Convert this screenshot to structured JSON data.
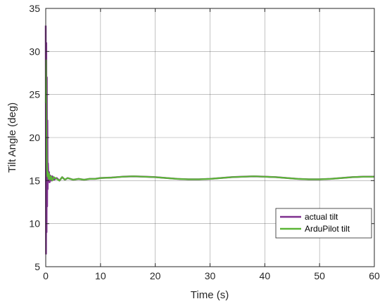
{
  "chart_data": {
    "type": "line",
    "xlabel": "Time (s)",
    "ylabel": "Tilt Angle (deg)",
    "xlim": [
      0,
      60
    ],
    "ylim": [
      5,
      35
    ],
    "x_ticks": [
      0,
      10,
      20,
      30,
      40,
      50,
      60
    ],
    "y_ticks": [
      5,
      10,
      15,
      20,
      25,
      30,
      35
    ],
    "grid": true,
    "legend_position": "bottom-right",
    "series": [
      {
        "name": "actual tilt",
        "color": "#7E2F8E",
        "x": [
          0,
          0.05,
          0.1,
          0.15,
          0.2,
          0.25,
          0.3,
          0.35,
          0.4,
          0.5,
          0.6,
          0.7,
          0.8,
          1.0,
          1.2,
          1.5,
          2,
          2.5,
          3,
          3.5,
          4,
          5,
          6,
          7,
          8,
          9,
          10,
          12,
          14,
          16,
          18,
          20,
          22,
          24,
          26,
          28,
          30,
          32,
          34,
          36,
          38,
          40,
          42,
          44,
          46,
          48,
          50,
          52,
          54,
          56,
          58,
          60
        ],
        "y": [
          33,
          6.5,
          31,
          9,
          27,
          12,
          22,
          14,
          17,
          15,
          16,
          14.8,
          15.6,
          15,
          15.5,
          15.1,
          15.3,
          15.0,
          15.4,
          15.1,
          15.3,
          15.1,
          15.2,
          15.1,
          15.2,
          15.2,
          15.3,
          15.35,
          15.45,
          15.5,
          15.45,
          15.4,
          15.3,
          15.2,
          15.15,
          15.15,
          15.2,
          15.3,
          15.4,
          15.45,
          15.5,
          15.45,
          15.4,
          15.3,
          15.2,
          15.15,
          15.15,
          15.2,
          15.3,
          15.4,
          15.45,
          15.45
        ]
      },
      {
        "name": "ArduPilot tilt",
        "color": "#5BB536",
        "x": [
          0,
          0.05,
          0.1,
          0.15,
          0.2,
          0.3,
          0.4,
          0.5,
          0.6,
          0.8,
          1.0,
          1.2,
          1.5,
          2,
          2.5,
          3,
          3.5,
          4,
          5,
          6,
          7,
          8,
          9,
          10,
          12,
          14,
          16,
          18,
          20,
          22,
          24,
          26,
          28,
          30,
          32,
          34,
          36,
          38,
          40,
          42,
          44,
          46,
          48,
          50,
          52,
          54,
          56,
          58,
          60
        ],
        "y": [
          24,
          29,
          22,
          19,
          17,
          15.5,
          16,
          15.2,
          15.8,
          15.1,
          15.5,
          15.0,
          15.4,
          15.2,
          15.0,
          15.4,
          15.1,
          15.3,
          15.1,
          15.2,
          15.1,
          15.2,
          15.2,
          15.3,
          15.35,
          15.45,
          15.5,
          15.45,
          15.4,
          15.3,
          15.2,
          15.15,
          15.15,
          15.2,
          15.3,
          15.4,
          15.45,
          15.5,
          15.45,
          15.4,
          15.3,
          15.2,
          15.15,
          15.15,
          15.2,
          15.3,
          15.4,
          15.45,
          15.45
        ]
      }
    ]
  }
}
